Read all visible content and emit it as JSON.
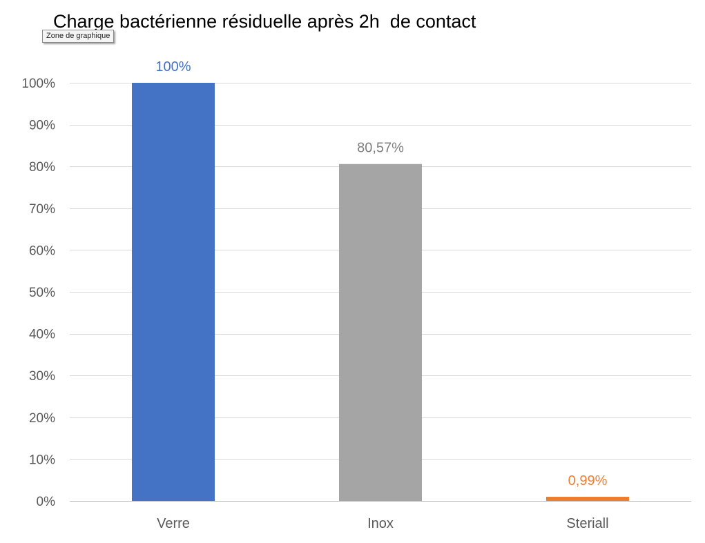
{
  "tooltip": {
    "text": "Zone de graphique"
  },
  "chart_data": {
    "type": "bar",
    "title": "Charge bactérienne résiduelle après 2h  de contact",
    "xlabel": "",
    "ylabel": "",
    "categories": [
      "Verre",
      "Inox",
      "Steriall"
    ],
    "values": [
      100,
      80.57,
      0.99
    ],
    "data_labels": [
      "100%",
      "80,57%",
      "0,99%"
    ],
    "bar_colors": [
      "#4472C4",
      "#A5A5A5",
      "#ED7D31"
    ],
    "ylim": [
      0,
      100
    ],
    "y_ticks": [
      0,
      10,
      20,
      30,
      40,
      50,
      60,
      70,
      80,
      90,
      100
    ],
    "y_tick_labels": [
      "0%",
      "10%",
      "20%",
      "30%",
      "40%",
      "50%",
      "60%",
      "70%",
      "80%",
      "90%",
      "100%"
    ],
    "grid": true,
    "grid_color": "#D9D9D9",
    "legend": "none"
  }
}
